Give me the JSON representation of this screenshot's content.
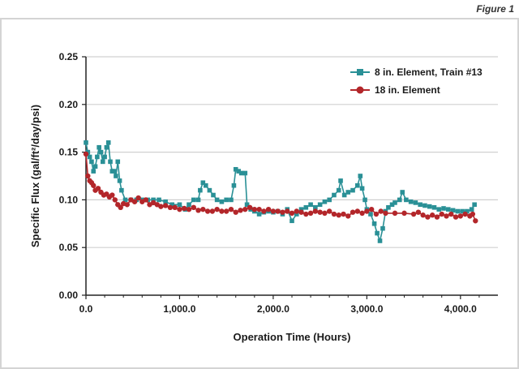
{
  "figure_label": "Figure 1",
  "colors": {
    "series_teal": "#2a9096",
    "series_red": "#b3262a",
    "grid": "#d0d0d0",
    "axis": "#222222"
  },
  "chart_data": {
    "type": "line",
    "title": "",
    "xlabel": "Operation Time (Hours)",
    "ylabel": "Specific Flux (gal/ft²/day/psi)",
    "xlim": [
      0,
      4400
    ],
    "ylim": [
      0,
      0.25
    ],
    "x_ticks": [
      0,
      1000,
      2000,
      3000,
      4000
    ],
    "x_tick_labels": [
      "0.0",
      "1,000.0",
      "2,000.0",
      "3,000.0",
      "4,000.0"
    ],
    "y_ticks": [
      0,
      0.05,
      0.1,
      0.15,
      0.2,
      0.25
    ],
    "y_tick_labels": [
      "0.00",
      "0.05",
      "0.10",
      "0.15",
      "0.20",
      "0.25"
    ],
    "grid": "horizontal",
    "legend_position": "top-right",
    "series": [
      {
        "name": "8 in. Element, Train #13",
        "color": "#2a9096",
        "marker": "square",
        "points": [
          [
            0,
            0.16
          ],
          [
            20,
            0.15
          ],
          [
            40,
            0.145
          ],
          [
            60,
            0.14
          ],
          [
            80,
            0.13
          ],
          [
            100,
            0.135
          ],
          [
            120,
            0.145
          ],
          [
            140,
            0.155
          ],
          [
            160,
            0.15
          ],
          [
            180,
            0.14
          ],
          [
            200,
            0.145
          ],
          [
            220,
            0.155
          ],
          [
            240,
            0.16
          ],
          [
            260,
            0.14
          ],
          [
            280,
            0.13
          ],
          [
            300,
            0.13
          ],
          [
            320,
            0.125
          ],
          [
            340,
            0.14
          ],
          [
            360,
            0.12
          ],
          [
            380,
            0.11
          ],
          [
            420,
            0.1
          ],
          [
            480,
            0.1
          ],
          [
            540,
            0.1
          ],
          [
            600,
            0.1
          ],
          [
            660,
            0.1
          ],
          [
            720,
            0.1
          ],
          [
            780,
            0.1
          ],
          [
            850,
            0.098
          ],
          [
            920,
            0.095
          ],
          [
            1000,
            0.095
          ],
          [
            1060,
            0.09
          ],
          [
            1100,
            0.095
          ],
          [
            1150,
            0.1
          ],
          [
            1200,
            0.1
          ],
          [
            1220,
            0.11
          ],
          [
            1250,
            0.118
          ],
          [
            1280,
            0.115
          ],
          [
            1320,
            0.11
          ],
          [
            1360,
            0.105
          ],
          [
            1400,
            0.1
          ],
          [
            1450,
            0.098
          ],
          [
            1500,
            0.1
          ],
          [
            1550,
            0.1
          ],
          [
            1580,
            0.115
          ],
          [
            1600,
            0.132
          ],
          [
            1630,
            0.13
          ],
          [
            1660,
            0.128
          ],
          [
            1700,
            0.128
          ],
          [
            1720,
            0.095
          ],
          [
            1760,
            0.09
          ],
          [
            1800,
            0.088
          ],
          [
            1850,
            0.085
          ],
          [
            1900,
            0.087
          ],
          [
            1950,
            0.088
          ],
          [
            2000,
            0.087
          ],
          [
            2050,
            0.088
          ],
          [
            2100,
            0.085
          ],
          [
            2150,
            0.09
          ],
          [
            2200,
            0.078
          ],
          [
            2250,
            0.085
          ],
          [
            2300,
            0.09
          ],
          [
            2350,
            0.092
          ],
          [
            2400,
            0.095
          ],
          [
            2450,
            0.092
          ],
          [
            2500,
            0.095
          ],
          [
            2550,
            0.098
          ],
          [
            2600,
            0.1
          ],
          [
            2650,
            0.105
          ],
          [
            2700,
            0.11
          ],
          [
            2720,
            0.12
          ],
          [
            2760,
            0.105
          ],
          [
            2800,
            0.108
          ],
          [
            2850,
            0.11
          ],
          [
            2900,
            0.115
          ],
          [
            2930,
            0.125
          ],
          [
            2950,
            0.112
          ],
          [
            2980,
            0.1
          ],
          [
            3000,
            0.09
          ],
          [
            3040,
            0.085
          ],
          [
            3080,
            0.075
          ],
          [
            3110,
            0.065
          ],
          [
            3140,
            0.057
          ],
          [
            3170,
            0.07
          ],
          [
            3200,
            0.088
          ],
          [
            3230,
            0.092
          ],
          [
            3270,
            0.095
          ],
          [
            3300,
            0.097
          ],
          [
            3350,
            0.1
          ],
          [
            3380,
            0.108
          ],
          [
            3420,
            0.1
          ],
          [
            3470,
            0.098
          ],
          [
            3520,
            0.097
          ],
          [
            3570,
            0.095
          ],
          [
            3620,
            0.094
          ],
          [
            3670,
            0.093
          ],
          [
            3720,
            0.092
          ],
          [
            3770,
            0.09
          ],
          [
            3820,
            0.091
          ],
          [
            3870,
            0.09
          ],
          [
            3920,
            0.089
          ],
          [
            3970,
            0.088
          ],
          [
            4020,
            0.088
          ],
          [
            4070,
            0.088
          ],
          [
            4120,
            0.09
          ],
          [
            4150,
            0.095
          ]
        ]
      },
      {
        "name": "18 in. Element",
        "color": "#b3262a",
        "marker": "circle",
        "points": [
          [
            0,
            0.148
          ],
          [
            20,
            0.125
          ],
          [
            40,
            0.12
          ],
          [
            60,
            0.118
          ],
          [
            80,
            0.115
          ],
          [
            100,
            0.11
          ],
          [
            130,
            0.112
          ],
          [
            160,
            0.108
          ],
          [
            190,
            0.105
          ],
          [
            220,
            0.106
          ],
          [
            250,
            0.103
          ],
          [
            280,
            0.105
          ],
          [
            310,
            0.1
          ],
          [
            340,
            0.095
          ],
          [
            370,
            0.092
          ],
          [
            400,
            0.096
          ],
          [
            440,
            0.095
          ],
          [
            480,
            0.1
          ],
          [
            520,
            0.098
          ],
          [
            560,
            0.102
          ],
          [
            600,
            0.098
          ],
          [
            640,
            0.1
          ],
          [
            680,
            0.095
          ],
          [
            720,
            0.097
          ],
          [
            760,
            0.095
          ],
          [
            800,
            0.093
          ],
          [
            850,
            0.094
          ],
          [
            900,
            0.092
          ],
          [
            950,
            0.092
          ],
          [
            1000,
            0.09
          ],
          [
            1050,
            0.091
          ],
          [
            1100,
            0.09
          ],
          [
            1150,
            0.092
          ],
          [
            1200,
            0.089
          ],
          [
            1250,
            0.09
          ],
          [
            1300,
            0.088
          ],
          [
            1350,
            0.088
          ],
          [
            1400,
            0.09
          ],
          [
            1450,
            0.088
          ],
          [
            1500,
            0.088
          ],
          [
            1550,
            0.09
          ],
          [
            1600,
            0.087
          ],
          [
            1650,
            0.089
          ],
          [
            1700,
            0.09
          ],
          [
            1750,
            0.092
          ],
          [
            1800,
            0.09
          ],
          [
            1850,
            0.09
          ],
          [
            1900,
            0.088
          ],
          [
            1950,
            0.09
          ],
          [
            2000,
            0.088
          ],
          [
            2050,
            0.088
          ],
          [
            2100,
            0.087
          ],
          [
            2150,
            0.088
          ],
          [
            2200,
            0.086
          ],
          [
            2250,
            0.088
          ],
          [
            2300,
            0.087
          ],
          [
            2350,
            0.085
          ],
          [
            2400,
            0.086
          ],
          [
            2450,
            0.088
          ],
          [
            2500,
            0.087
          ],
          [
            2550,
            0.086
          ],
          [
            2600,
            0.088
          ],
          [
            2650,
            0.085
          ],
          [
            2700,
            0.084
          ],
          [
            2750,
            0.085
          ],
          [
            2800,
            0.083
          ],
          [
            2850,
            0.087
          ],
          [
            2900,
            0.088
          ],
          [
            2950,
            0.086
          ],
          [
            3000,
            0.088
          ],
          [
            3050,
            0.09
          ],
          [
            3100,
            0.085
          ],
          [
            3150,
            0.088
          ],
          [
            3200,
            0.086
          ],
          [
            3300,
            0.086
          ],
          [
            3400,
            0.086
          ],
          [
            3500,
            0.085
          ],
          [
            3550,
            0.087
          ],
          [
            3600,
            0.084
          ],
          [
            3650,
            0.082
          ],
          [
            3700,
            0.084
          ],
          [
            3750,
            0.082
          ],
          [
            3800,
            0.085
          ],
          [
            3850,
            0.083
          ],
          [
            3900,
            0.085
          ],
          [
            3950,
            0.082
          ],
          [
            4000,
            0.083
          ],
          [
            4050,
            0.085
          ],
          [
            4100,
            0.083
          ],
          [
            4130,
            0.085
          ],
          [
            4160,
            0.078
          ]
        ]
      }
    ]
  }
}
